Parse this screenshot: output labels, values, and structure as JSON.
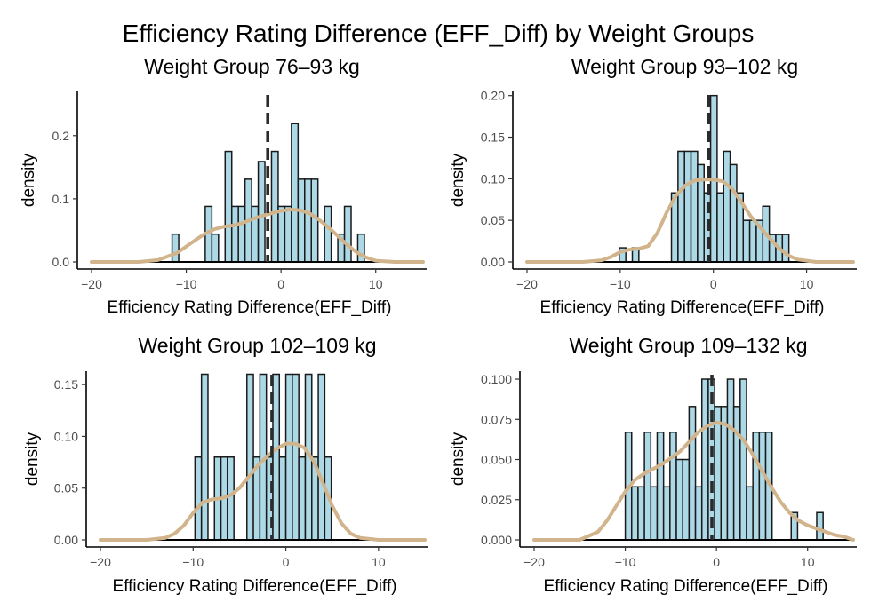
{
  "figure_title": "Efficiency Rating Difference (EFF_Diff) by Weight Groups",
  "colors": {
    "bar_fill": "#add8e6",
    "bar_edge": "#1a1a1a",
    "density": "#d2b48c",
    "mean_line": "#2b2b2b"
  },
  "chart_data": [
    {
      "type": "histogram",
      "title": "Weight Group 76–93 kg",
      "xlabel": "Efficiency Rating Difference(EFF_Diff)",
      "ylabel": "density",
      "xlim": [
        -20,
        15
      ],
      "ylim": [
        0,
        0.27
      ],
      "xticks": [
        -20,
        -10,
        0,
        10
      ],
      "yticks": [
        0.0,
        0.1,
        0.2
      ],
      "ytick_labels": [
        "0.0",
        "0.1",
        "0.2"
      ],
      "bin_width": 0.7,
      "mean": -1.4,
      "bars": [
        [
          -11.15,
          0.044
        ],
        [
          -7.65,
          0.088
        ],
        [
          -6.95,
          0.044
        ],
        [
          -5.55,
          0.175
        ],
        [
          -4.85,
          0.088
        ],
        [
          -4.15,
          0.088
        ],
        [
          -3.45,
          0.131
        ],
        [
          -2.75,
          0.088
        ],
        [
          -2.05,
          0.159
        ],
        [
          -0.65,
          0.175
        ],
        [
          0.05,
          0.088
        ],
        [
          0.75,
          0.088
        ],
        [
          1.45,
          0.219
        ],
        [
          2.15,
          0.131
        ],
        [
          2.85,
          0.131
        ],
        [
          3.55,
          0.131
        ],
        [
          4.95,
          0.088
        ],
        [
          6.35,
          0.044
        ],
        [
          7.05,
          0.088
        ],
        [
          8.45,
          0.044
        ]
      ],
      "density_curve": [
        [
          -20,
          0.0
        ],
        [
          -15,
          0.0
        ],
        [
          -13,
          0.003
        ],
        [
          -11,
          0.014
        ],
        [
          -9,
          0.035
        ],
        [
          -8,
          0.045
        ],
        [
          -7,
          0.052
        ],
        [
          -6,
          0.056
        ],
        [
          -5,
          0.058
        ],
        [
          -4,
          0.062
        ],
        [
          -3,
          0.068
        ],
        [
          -2,
          0.073
        ],
        [
          -1,
          0.077
        ],
        [
          0,
          0.081
        ],
        [
          1,
          0.083
        ],
        [
          2,
          0.082
        ],
        [
          3,
          0.077
        ],
        [
          4,
          0.067
        ],
        [
          5,
          0.055
        ],
        [
          6,
          0.041
        ],
        [
          7,
          0.027
        ],
        [
          8,
          0.015
        ],
        [
          9,
          0.007
        ],
        [
          10,
          0.002
        ],
        [
          12,
          0.0
        ],
        [
          15,
          0.0
        ]
      ]
    },
    {
      "type": "histogram",
      "title": "Weight Group 93–102 kg",
      "xlabel": "Efficiency Rating Difference(EFF_Diff)",
      "ylabel": "density",
      "xlim": [
        -20,
        15
      ],
      "ylim": [
        0,
        0.205
      ],
      "xticks": [
        -20,
        -10,
        0,
        10
      ],
      "yticks": [
        0.0,
        0.05,
        0.1,
        0.15,
        0.2
      ],
      "ytick_labels": [
        "0.00",
        "0.05",
        "0.10",
        "0.15",
        "0.20"
      ],
      "bin_width": 0.7,
      "mean": -0.5,
      "bars": [
        [
          -9.75,
          0.017
        ],
        [
          -8.35,
          0.017
        ],
        [
          -4.15,
          0.083
        ],
        [
          -3.45,
          0.133
        ],
        [
          -2.75,
          0.133
        ],
        [
          -2.05,
          0.133
        ],
        [
          -1.35,
          0.117
        ],
        [
          -0.65,
          0.083
        ],
        [
          0.05,
          0.2
        ],
        [
          0.75,
          0.083
        ],
        [
          1.45,
          0.133
        ],
        [
          2.15,
          0.117
        ],
        [
          2.85,
          0.083
        ],
        [
          3.55,
          0.05
        ],
        [
          4.25,
          0.05
        ],
        [
          4.95,
          0.05
        ],
        [
          5.65,
          0.067
        ],
        [
          6.35,
          0.033
        ],
        [
          7.05,
          0.033
        ],
        [
          7.75,
          0.033
        ]
      ],
      "density_curve": [
        [
          -20,
          0.0
        ],
        [
          -14,
          0.0
        ],
        [
          -12,
          0.002
        ],
        [
          -11,
          0.006
        ],
        [
          -10,
          0.012
        ],
        [
          -9,
          0.015
        ],
        [
          -8,
          0.016
        ],
        [
          -7,
          0.019
        ],
        [
          -6,
          0.035
        ],
        [
          -5,
          0.06
        ],
        [
          -4,
          0.08
        ],
        [
          -3,
          0.092
        ],
        [
          -2,
          0.098
        ],
        [
          -1,
          0.099
        ],
        [
          0,
          0.099
        ],
        [
          1,
          0.097
        ],
        [
          2,
          0.088
        ],
        [
          3,
          0.072
        ],
        [
          4,
          0.055
        ],
        [
          5,
          0.042
        ],
        [
          6,
          0.029
        ],
        [
          7,
          0.017
        ],
        [
          8,
          0.008
        ],
        [
          9,
          0.003
        ],
        [
          11,
          0.0
        ],
        [
          15,
          0.0
        ]
      ]
    },
    {
      "type": "histogram",
      "title": "Weight Group 102–109 kg",
      "xlabel": "Efficiency Rating Difference(EFF_Diff)",
      "ylabel": "density",
      "xlim": [
        -20,
        15
      ],
      "ylim": [
        0,
        0.163
      ],
      "xticks": [
        -20,
        -10,
        0,
        10
      ],
      "yticks": [
        0.0,
        0.05,
        0.1,
        0.15
      ],
      "ytick_labels": [
        "0.00",
        "0.05",
        "0.10",
        "0.15"
      ],
      "bin_width": 0.7,
      "mean": -1.5,
      "bars": [
        [
          -9.45,
          0.08
        ],
        [
          -8.75,
          0.16
        ],
        [
          -7.35,
          0.08
        ],
        [
          -6.65,
          0.08
        ],
        [
          -5.95,
          0.08
        ],
        [
          -3.85,
          0.16
        ],
        [
          -3.15,
          0.08
        ],
        [
          -2.45,
          0.16
        ],
        [
          -1.75,
          0.08
        ],
        [
          -1.05,
          0.16
        ],
        [
          -0.35,
          0.08
        ],
        [
          0.35,
          0.16
        ],
        [
          1.05,
          0.16
        ],
        [
          1.75,
          0.08
        ],
        [
          2.45,
          0.16
        ],
        [
          3.15,
          0.08
        ],
        [
          3.85,
          0.16
        ],
        [
          4.55,
          0.08
        ]
      ],
      "density_curve": [
        [
          -20,
          0.0
        ],
        [
          -15,
          0.0
        ],
        [
          -13,
          0.002
        ],
        [
          -12,
          0.006
        ],
        [
          -11,
          0.014
        ],
        [
          -10,
          0.026
        ],
        [
          -9,
          0.036
        ],
        [
          -8,
          0.039
        ],
        [
          -7,
          0.04
        ],
        [
          -6,
          0.043
        ],
        [
          -5,
          0.05
        ],
        [
          -4,
          0.061
        ],
        [
          -3,
          0.072
        ],
        [
          -2,
          0.081
        ],
        [
          -1,
          0.088
        ],
        [
          0,
          0.093
        ],
        [
          1,
          0.093
        ],
        [
          2,
          0.089
        ],
        [
          3,
          0.076
        ],
        [
          4,
          0.055
        ],
        [
          5,
          0.033
        ],
        [
          6,
          0.016
        ],
        [
          7,
          0.006
        ],
        [
          8,
          0.002
        ],
        [
          10,
          0.0
        ],
        [
          15,
          0.0
        ]
      ]
    },
    {
      "type": "histogram",
      "title": "Weight Group 109–132 kg",
      "xlabel": "Efficiency Rating Difference(EFF_Diff)",
      "ylabel": "density",
      "xlim": [
        -20,
        15
      ],
      "ylim": [
        0,
        0.105
      ],
      "xticks": [
        -20,
        -10,
        0,
        10
      ],
      "yticks": [
        0.0,
        0.025,
        0.05,
        0.075,
        0.1
      ],
      "ytick_labels": [
        "0.000",
        "0.025",
        "0.050",
        "0.075",
        "0.100"
      ],
      "bin_width": 0.7,
      "mean": -0.5,
      "bars": [
        [
          -9.65,
          0.067
        ],
        [
          -8.95,
          0.033
        ],
        [
          -8.25,
          0.033
        ],
        [
          -7.55,
          0.067
        ],
        [
          -6.85,
          0.033
        ],
        [
          -6.15,
          0.067
        ],
        [
          -5.45,
          0.033
        ],
        [
          -4.75,
          0.067
        ],
        [
          -4.05,
          0.05
        ],
        [
          -3.35,
          0.05
        ],
        [
          -2.65,
          0.083
        ],
        [
          -1.95,
          0.033
        ],
        [
          -1.25,
          0.1
        ],
        [
          -0.55,
          0.1
        ],
        [
          0.15,
          0.083
        ],
        [
          0.85,
          0.083
        ],
        [
          1.55,
          0.1
        ],
        [
          2.25,
          0.083
        ],
        [
          2.95,
          0.1
        ],
        [
          3.65,
          0.033
        ],
        [
          4.35,
          0.067
        ],
        [
          5.05,
          0.067
        ],
        [
          5.75,
          0.067
        ],
        [
          8.55,
          0.017
        ],
        [
          11.35,
          0.017
        ]
      ],
      "density_curve": [
        [
          -20,
          0.0
        ],
        [
          -15,
          0.0
        ],
        [
          -13,
          0.005
        ],
        [
          -12,
          0.012
        ],
        [
          -11,
          0.021
        ],
        [
          -10,
          0.03
        ],
        [
          -9,
          0.037
        ],
        [
          -8,
          0.041
        ],
        [
          -7,
          0.044
        ],
        [
          -6,
          0.047
        ],
        [
          -5,
          0.051
        ],
        [
          -4,
          0.055
        ],
        [
          -3,
          0.061
        ],
        [
          -2,
          0.067
        ],
        [
          -1,
          0.071
        ],
        [
          0,
          0.073
        ],
        [
          1,
          0.072
        ],
        [
          2,
          0.068
        ],
        [
          3,
          0.062
        ],
        [
          4,
          0.053
        ],
        [
          5,
          0.043
        ],
        [
          6,
          0.033
        ],
        [
          7,
          0.024
        ],
        [
          8,
          0.017
        ],
        [
          9,
          0.012
        ],
        [
          10,
          0.009
        ],
        [
          11,
          0.007
        ],
        [
          12,
          0.005
        ],
        [
          13,
          0.003
        ],
        [
          14,
          0.002
        ],
        [
          15,
          0.0
        ]
      ]
    }
  ]
}
